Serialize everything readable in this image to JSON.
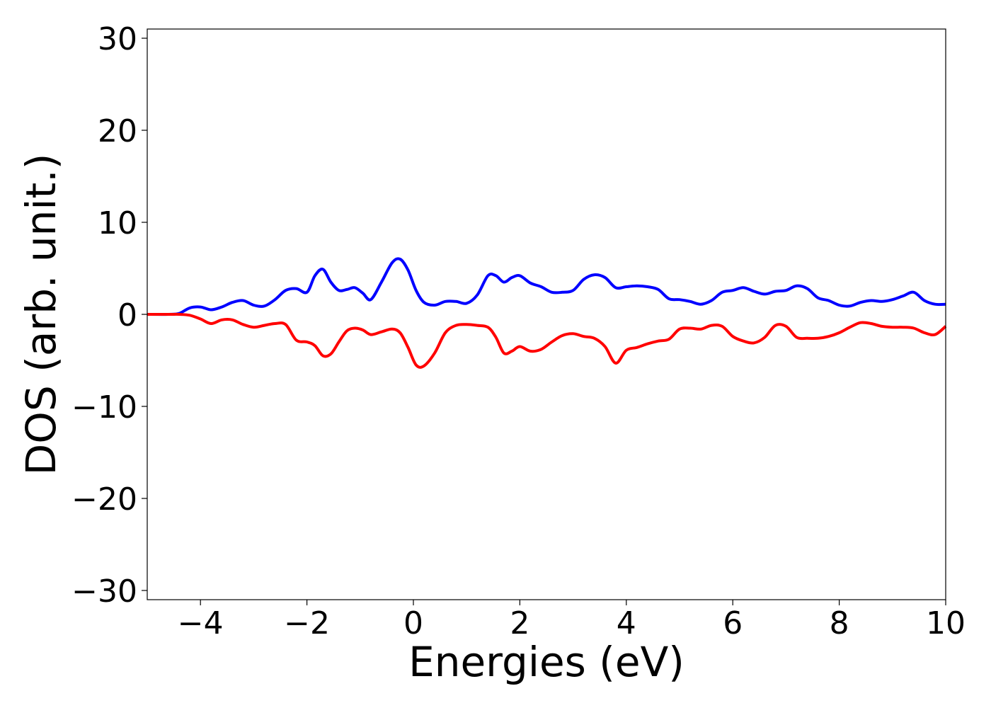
{
  "chart_data": {
    "type": "line",
    "title": "",
    "xlabel": "Energies (eV)",
    "ylabel": "DOS (arb. unit.)",
    "xlim": [
      -5,
      10
    ],
    "ylim": [
      -31,
      31
    ],
    "x_ticks": [
      -4,
      -2,
      0,
      2,
      4,
      6,
      8,
      10
    ],
    "x_tick_labels": [
      "−4",
      "−2",
      "0",
      "2",
      "4",
      "6",
      "8",
      "10"
    ],
    "y_ticks": [
      30,
      20,
      10,
      0,
      -10,
      -20,
      -30
    ],
    "y_tick_labels": [
      "30",
      "20",
      "10",
      "0",
      "−10",
      "−20",
      "−30"
    ],
    "grid": false,
    "series": [
      {
        "color": "#0000ff",
        "x": [
          -5.0,
          -4.6,
          -4.4,
          -4.2,
          -4.0,
          -3.8,
          -3.6,
          -3.4,
          -3.2,
          -3.0,
          -2.8,
          -2.6,
          -2.4,
          -2.2,
          -2.0,
          -1.85,
          -1.7,
          -1.55,
          -1.4,
          -1.25,
          -1.1,
          -0.95,
          -0.8,
          -0.6,
          -0.4,
          -0.25,
          -0.1,
          0.05,
          0.2,
          0.4,
          0.6,
          0.8,
          1.0,
          1.2,
          1.4,
          1.55,
          1.7,
          1.85,
          2.0,
          2.2,
          2.4,
          2.6,
          2.8,
          3.0,
          3.2,
          3.4,
          3.6,
          3.8,
          4.0,
          4.2,
          4.4,
          4.6,
          4.8,
          5.0,
          5.2,
          5.4,
          5.6,
          5.8,
          6.0,
          6.2,
          6.4,
          6.6,
          6.8,
          7.0,
          7.2,
          7.4,
          7.6,
          7.8,
          8.0,
          8.2,
          8.4,
          8.6,
          8.8,
          9.0,
          9.2,
          9.4,
          9.6,
          9.8,
          10.0
        ],
        "y": [
          0.0,
          0.0,
          0.1,
          0.7,
          0.8,
          0.5,
          0.8,
          1.3,
          1.5,
          1.0,
          0.9,
          1.6,
          2.6,
          2.8,
          2.4,
          4.2,
          4.9,
          3.5,
          2.6,
          2.7,
          2.9,
          2.3,
          1.6,
          3.5,
          5.6,
          6.0,
          4.8,
          2.6,
          1.3,
          1.0,
          1.4,
          1.4,
          1.2,
          2.1,
          4.2,
          4.2,
          3.5,
          4.0,
          4.2,
          3.4,
          3.0,
          2.4,
          2.4,
          2.6,
          3.8,
          4.3,
          4.0,
          2.9,
          3.0,
          3.1,
          3.0,
          2.7,
          1.7,
          1.6,
          1.4,
          1.1,
          1.5,
          2.4,
          2.6,
          2.9,
          2.5,
          2.2,
          2.5,
          2.6,
          3.1,
          2.8,
          1.8,
          1.5,
          1.0,
          0.9,
          1.3,
          1.5,
          1.4,
          1.6,
          2.0,
          2.4,
          1.5,
          1.1,
          1.1
        ]
      },
      {
        "color": "#ff0000",
        "x": [
          -5.0,
          -4.6,
          -4.4,
          -4.2,
          -4.0,
          -3.8,
          -3.6,
          -3.4,
          -3.2,
          -3.0,
          -2.8,
          -2.6,
          -2.4,
          -2.2,
          -2.0,
          -1.85,
          -1.7,
          -1.55,
          -1.4,
          -1.25,
          -1.1,
          -0.95,
          -0.8,
          -0.6,
          -0.4,
          -0.25,
          -0.1,
          0.05,
          0.2,
          0.4,
          0.6,
          0.8,
          1.0,
          1.2,
          1.4,
          1.55,
          1.7,
          1.85,
          2.0,
          2.2,
          2.4,
          2.6,
          2.8,
          3.0,
          3.2,
          3.4,
          3.6,
          3.8,
          4.0,
          4.2,
          4.4,
          4.6,
          4.8,
          5.0,
          5.2,
          5.4,
          5.6,
          5.8,
          6.0,
          6.2,
          6.4,
          6.6,
          6.8,
          7.0,
          7.2,
          7.4,
          7.6,
          7.8,
          8.0,
          8.2,
          8.4,
          8.6,
          8.8,
          9.0,
          9.2,
          9.4,
          9.6,
          9.8,
          10.0
        ],
        "y": [
          0.0,
          0.0,
          0.0,
          -0.1,
          -0.5,
          -1.0,
          -0.6,
          -0.6,
          -1.1,
          -1.4,
          -1.2,
          -1.0,
          -1.1,
          -2.8,
          -3.0,
          -3.4,
          -4.5,
          -4.3,
          -3.0,
          -1.8,
          -1.5,
          -1.7,
          -2.2,
          -1.9,
          -1.6,
          -2.0,
          -3.6,
          -5.5,
          -5.6,
          -4.2,
          -2.0,
          -1.2,
          -1.1,
          -1.2,
          -1.4,
          -2.5,
          -4.2,
          -4.0,
          -3.5,
          -4.0,
          -3.8,
          -3.0,
          -2.3,
          -2.1,
          -2.4,
          -2.6,
          -3.5,
          -5.3,
          -3.9,
          -3.6,
          -3.2,
          -2.9,
          -2.7,
          -1.6,
          -1.5,
          -1.6,
          -1.2,
          -1.3,
          -2.4,
          -2.9,
          -3.1,
          -2.5,
          -1.2,
          -1.3,
          -2.5,
          -2.6,
          -2.6,
          -2.4,
          -2.0,
          -1.4,
          -0.9,
          -1.0,
          -1.3,
          -1.4,
          -1.4,
          -1.5,
          -2.0,
          -2.2,
          -1.3
        ]
      }
    ]
  }
}
